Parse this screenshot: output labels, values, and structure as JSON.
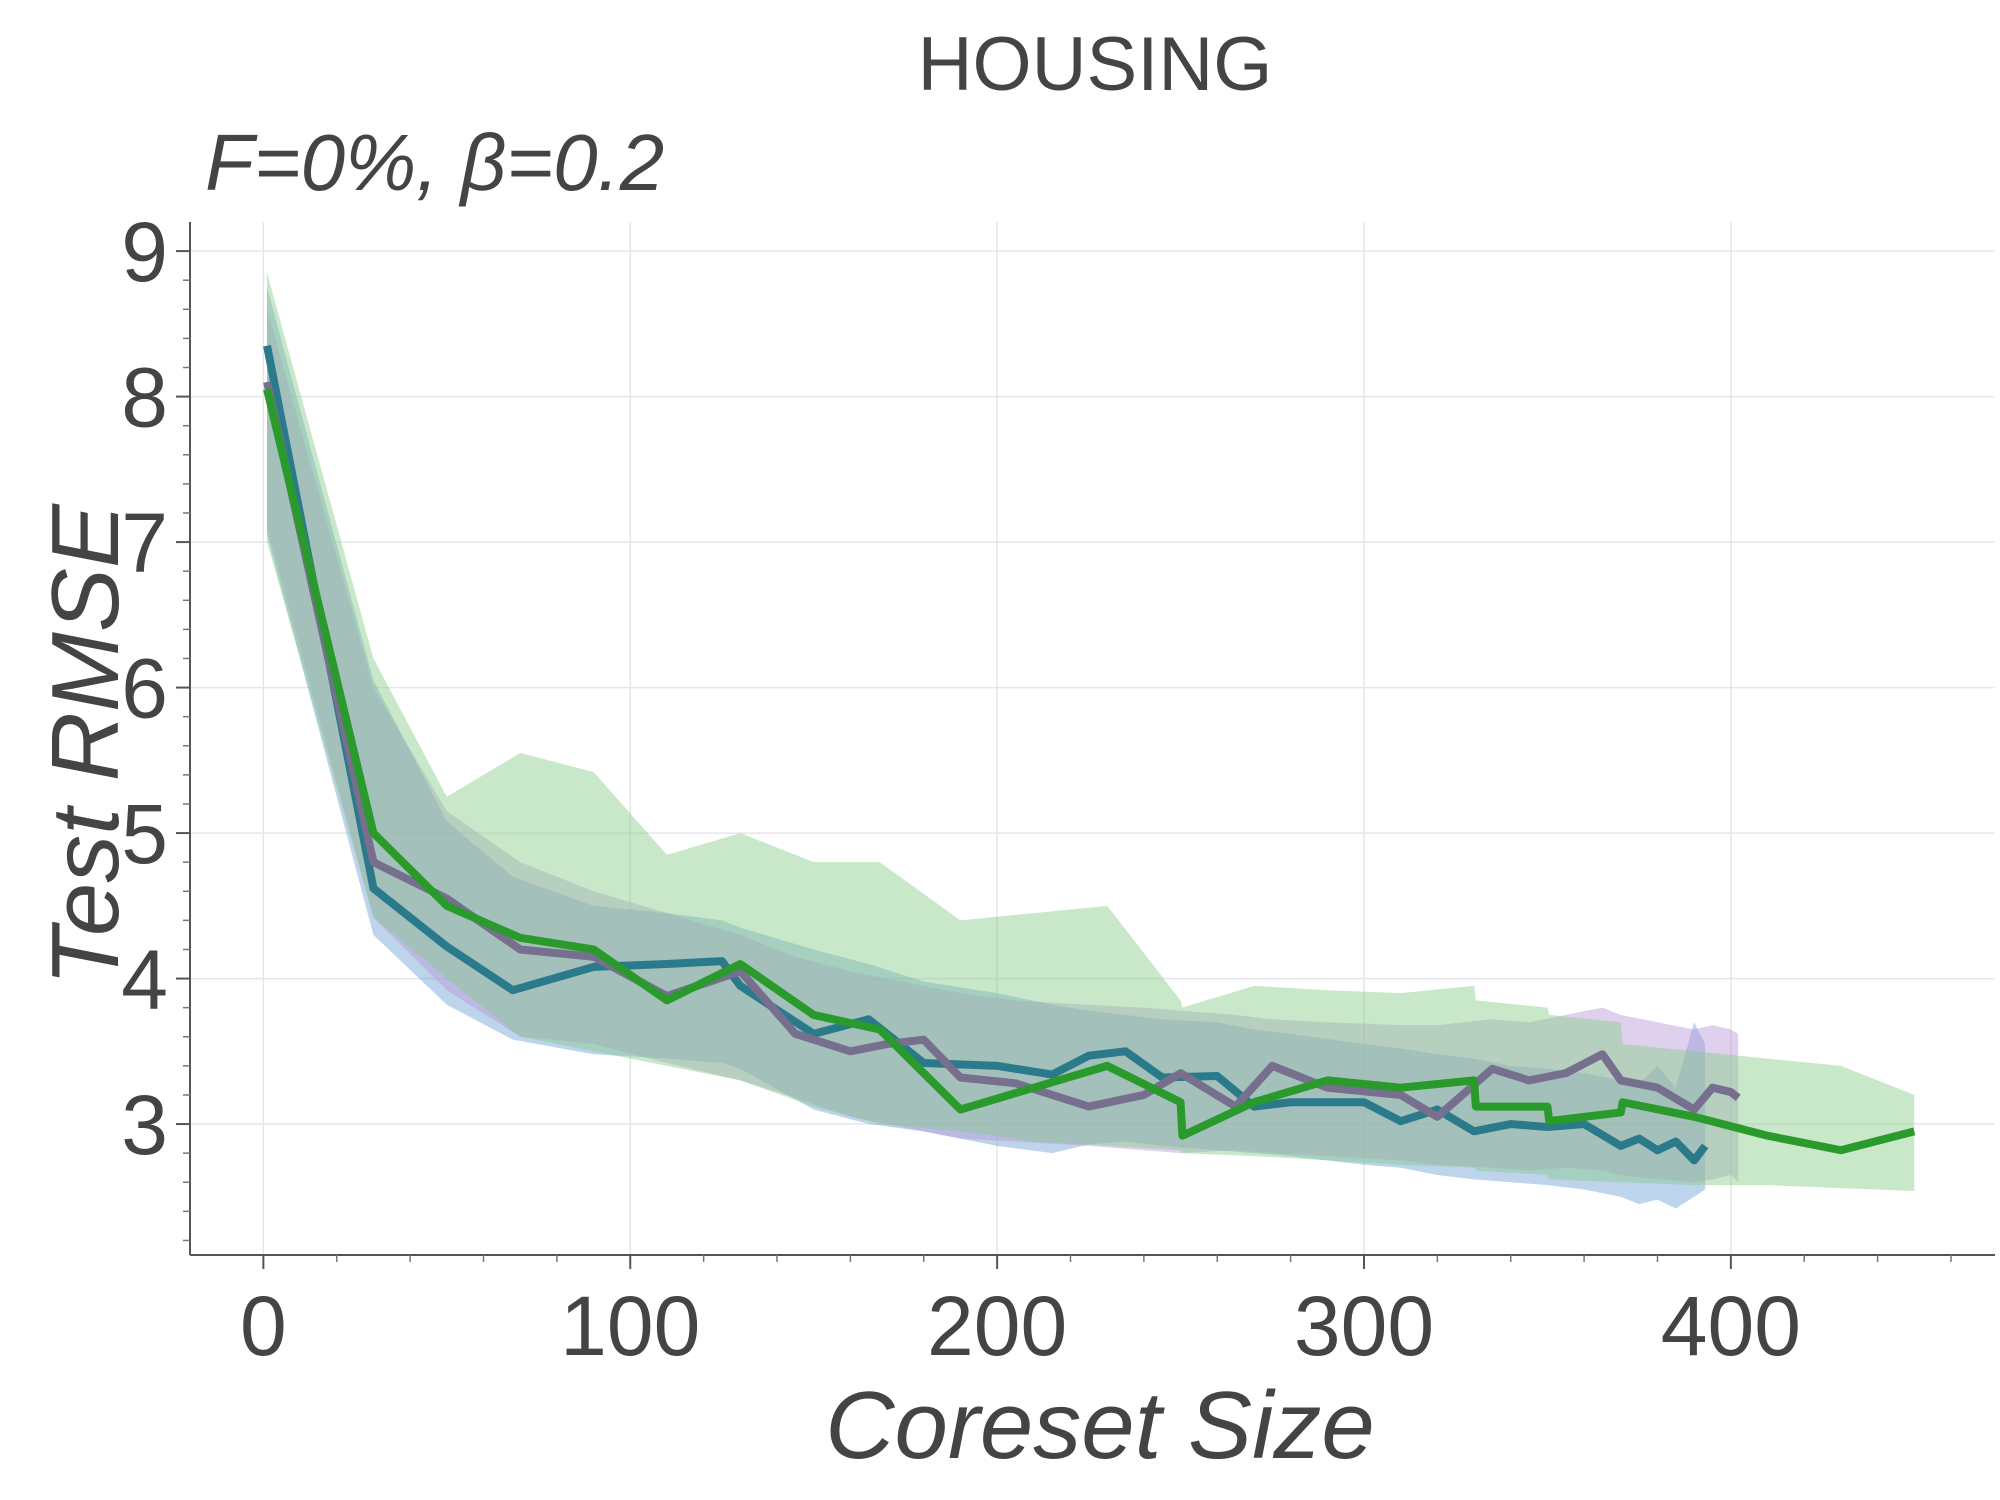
{
  "chart_data": {
    "type": "line",
    "title": "HOUSING",
    "subtitle": "F=0%,  β=0.2",
    "xlabel": "Coreset Size",
    "ylabel": "Test RMSE",
    "xlim": [
      -20,
      472
    ],
    "ylim": [
      2.1,
      9.2
    ],
    "xticks": [
      0,
      100,
      200,
      300,
      400
    ],
    "yticks": [
      3,
      4,
      5,
      6,
      7,
      8,
      9
    ],
    "xtick_labels": [
      "0",
      "100",
      "200",
      "300",
      "400"
    ],
    "ytick_labels": [
      "3",
      "4",
      "5",
      "6",
      "7",
      "8",
      "9"
    ],
    "grid": true,
    "series": [
      {
        "color": "#2a7a8c",
        "band_color": "#6f9fd8",
        "x": [
          1,
          30,
          50,
          68,
          90,
          110,
          125,
          130,
          150,
          165,
          180,
          200,
          215,
          225,
          235,
          245,
          260,
          270,
          280,
          300,
          310,
          320,
          330,
          340,
          350,
          360,
          370,
          375,
          380,
          385,
          390,
          393
        ],
        "y": [
          8.35,
          4.62,
          4.22,
          3.92,
          4.08,
          4.1,
          4.12,
          3.95,
          3.62,
          3.72,
          3.42,
          3.4,
          3.34,
          3.47,
          3.5,
          3.32,
          3.33,
          3.12,
          3.15,
          3.15,
          3.02,
          3.1,
          2.95,
          3.0,
          2.98,
          3.0,
          2.85,
          2.9,
          2.82,
          2.88,
          2.75,
          2.85
        ],
        "lower": [
          7.05,
          4.3,
          3.82,
          3.58,
          3.48,
          3.45,
          3.42,
          3.38,
          3.1,
          3.0,
          2.95,
          2.85,
          2.8,
          2.86,
          2.88,
          2.85,
          2.82,
          2.8,
          2.78,
          2.72,
          2.7,
          2.65,
          2.62,
          2.6,
          2.58,
          2.55,
          2.5,
          2.45,
          2.48,
          2.42,
          2.5,
          2.55
        ],
        "upper": [
          8.75,
          6.05,
          5.08,
          4.7,
          4.5,
          4.45,
          4.4,
          4.35,
          4.2,
          4.1,
          3.98,
          3.9,
          3.82,
          3.78,
          3.75,
          3.72,
          3.7,
          3.65,
          3.62,
          3.55,
          3.52,
          3.48,
          3.45,
          3.4,
          3.38,
          3.35,
          3.3,
          3.28,
          3.4,
          3.25,
          3.7,
          3.55
        ]
      },
      {
        "color": "#76708e",
        "band_color": "#b79ad8",
        "x": [
          1,
          30,
          50,
          70,
          90,
          110,
          130,
          145,
          160,
          170,
          180,
          190,
          205,
          225,
          240,
          250,
          265,
          275,
          290,
          310,
          320,
          335,
          345,
          355,
          365,
          370,
          380,
          390,
          395,
          400,
          402
        ],
        "y": [
          8.1,
          4.8,
          4.55,
          4.2,
          4.15,
          3.88,
          4.05,
          3.62,
          3.5,
          3.55,
          3.58,
          3.32,
          3.28,
          3.12,
          3.2,
          3.35,
          3.12,
          3.4,
          3.25,
          3.2,
          3.05,
          3.38,
          3.3,
          3.35,
          3.48,
          3.3,
          3.25,
          3.1,
          3.25,
          3.22,
          3.18
        ],
        "lower": [
          7.1,
          4.42,
          3.92,
          3.6,
          3.55,
          3.42,
          3.3,
          3.18,
          3.05,
          3.0,
          2.95,
          2.9,
          2.88,
          2.85,
          2.82,
          2.8,
          2.82,
          2.8,
          2.78,
          2.75,
          2.72,
          2.7,
          2.68,
          2.7,
          2.68,
          2.65,
          2.62,
          2.6,
          2.62,
          2.65,
          2.6
        ],
        "upper": [
          8.6,
          6.0,
          5.15,
          4.8,
          4.6,
          4.45,
          4.3,
          4.15,
          4.05,
          4.0,
          3.95,
          3.9,
          3.85,
          3.82,
          3.8,
          3.78,
          3.75,
          3.72,
          3.7,
          3.68,
          3.68,
          3.72,
          3.7,
          3.75,
          3.8,
          3.75,
          3.7,
          3.65,
          3.68,
          3.65,
          3.62
        ]
      },
      {
        "color": "#2a9a2c",
        "band_color": "#88cc88",
        "x": [
          1,
          30,
          50,
          70,
          90,
          110,
          130,
          150,
          168,
          190,
          210,
          230,
          250,
          250.5,
          270,
          290,
          310,
          330,
          330.5,
          350,
          350.5,
          370,
          370.5,
          390,
          410,
          430,
          450
        ],
        "y": [
          8.05,
          5.0,
          4.5,
          4.28,
          4.2,
          3.85,
          4.1,
          3.75,
          3.65,
          3.1,
          3.25,
          3.4,
          3.15,
          2.92,
          3.15,
          3.3,
          3.25,
          3.3,
          3.12,
          3.12,
          3.02,
          3.08,
          3.15,
          3.05,
          2.92,
          2.82,
          2.95
        ],
        "lower": [
          7.0,
          4.42,
          4.0,
          3.6,
          3.5,
          3.4,
          3.3,
          3.12,
          3.0,
          2.95,
          2.88,
          2.85,
          2.82,
          2.8,
          2.78,
          2.75,
          2.72,
          2.7,
          2.68,
          2.65,
          2.62,
          2.6,
          2.6,
          2.58,
          2.58,
          2.56,
          2.54
        ],
        "upper": [
          8.85,
          6.2,
          5.25,
          5.55,
          5.42,
          4.85,
          5.0,
          4.8,
          4.8,
          4.4,
          4.45,
          4.5,
          3.85,
          3.8,
          3.95,
          3.92,
          3.9,
          3.95,
          3.85,
          3.8,
          3.75,
          3.7,
          3.55,
          3.5,
          3.45,
          3.4,
          3.2
        ]
      }
    ]
  }
}
